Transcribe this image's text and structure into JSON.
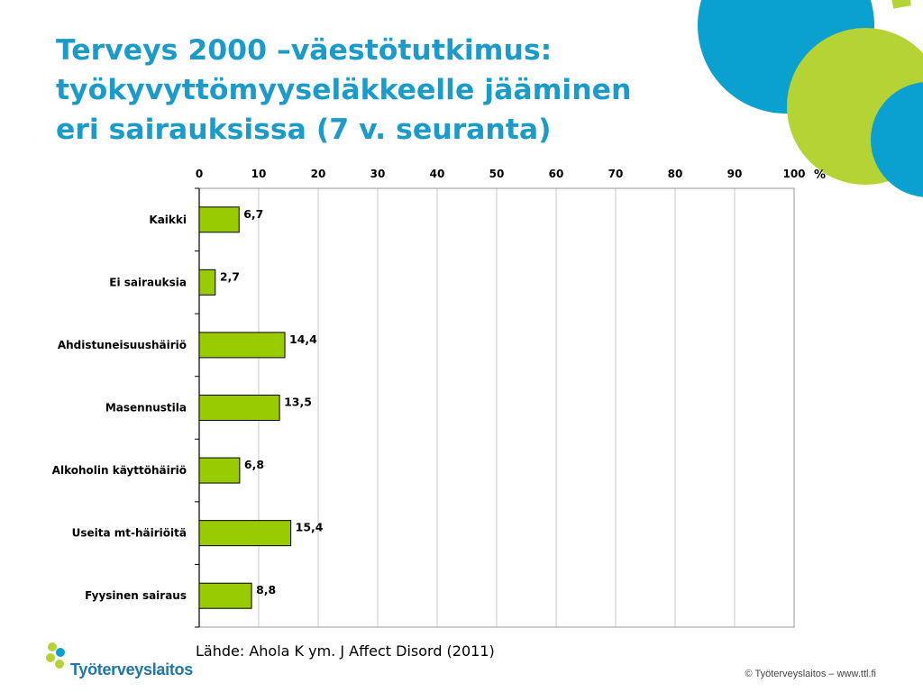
{
  "slide": {
    "title_lines": [
      "Terveys 2000 –väestötutkimus:",
      "työkyvyttömyyseläkkeelle jääminen",
      "eri sairauksissa (7 v. seuranta)"
    ],
    "source": "Lähde: Ahola K ym. J Affect Disord (2011)",
    "logo_text": "Työterveyslaitos",
    "footer": "© Työterveyslaitos   –   www.ttl.fi"
  },
  "colors": {
    "title": "#1a9bc9",
    "bar_fill": "#99cc00",
    "bar_stroke": "#000000",
    "deco_blue": "#0aa0cf",
    "deco_green": "#b5d334"
  },
  "chart_data": {
    "type": "bar",
    "orientation": "horizontal",
    "categories": [
      "Kaikki",
      "Ei sairauksia",
      "Ahdistuneisuushäiriö",
      "Masennustila",
      "Alkoholin käyttöhäiriö",
      "Useita mt-häiriöitä",
      "Fyysinen sairaus"
    ],
    "values": [
      6.7,
      2.7,
      14.4,
      13.5,
      6.8,
      15.4,
      8.8
    ],
    "value_labels": [
      "6,7",
      "2,7",
      "14,4",
      "13,5",
      "6,8",
      "15,4",
      "8,8"
    ],
    "xlim": [
      0,
      100
    ],
    "xticks": [
      "0",
      "10",
      "20",
      "30",
      "40",
      "50",
      "60",
      "70",
      "80",
      "90",
      "100"
    ],
    "xunit": "%",
    "x_axis_position": "top",
    "grid": true
  }
}
